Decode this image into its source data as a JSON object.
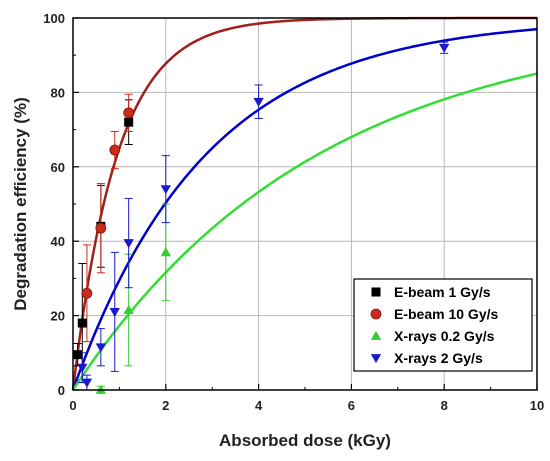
{
  "chart_data": {
    "type": "scatter",
    "xlabel": "Absorbed dose (kGy)",
    "ylabel": "Degradation efficiency (%)",
    "xlim": [
      0,
      10
    ],
    "ylim": [
      0,
      100
    ],
    "x_ticks": [
      0,
      2,
      4,
      6,
      8,
      10
    ],
    "y_ticks": [
      0,
      20,
      40,
      60,
      80,
      100
    ],
    "grid": true,
    "legend_position": "bottom-right",
    "series": [
      {
        "name": "E-beam 1 Gy/s",
        "marker": "square",
        "color": "#000000",
        "points": [
          {
            "x": 0.1,
            "y": 9.5,
            "err": 3
          },
          {
            "x": 0.2,
            "y": 18,
            "err": 16
          },
          {
            "x": 0.6,
            "y": 44,
            "err": 11
          },
          {
            "x": 1.2,
            "y": 72,
            "err": 6
          }
        ]
      },
      {
        "name": "E-beam 10 Gy/s",
        "marker": "circle",
        "color": "#cc2a1a",
        "points": [
          {
            "x": 0.3,
            "y": 26,
            "err": 13
          },
          {
            "x": 0.6,
            "y": 43.5,
            "err": 12
          },
          {
            "x": 0.9,
            "y": 64.5,
            "err": 5
          },
          {
            "x": 1.2,
            "y": 74.5,
            "err": 5
          }
        ]
      },
      {
        "name": "X-rays 0.2 Gy/s",
        "marker": "triangle-up",
        "color": "#33cc33",
        "points": [
          {
            "x": 0.6,
            "y": 0,
            "err": 1
          },
          {
            "x": 1.2,
            "y": 21.5,
            "err": 15
          },
          {
            "x": 2.0,
            "y": 37,
            "err": 13
          }
        ]
      },
      {
        "name": "X-rays 2 Gy/s",
        "marker": "triangle-down",
        "color": "#1a1acc",
        "points": [
          {
            "x": 0.2,
            "y": 6,
            "err": 4
          },
          {
            "x": 0.3,
            "y": 2,
            "err": 2
          },
          {
            "x": 0.6,
            "y": 11.5,
            "err": 5
          },
          {
            "x": 0.9,
            "y": 21,
            "err": 16
          },
          {
            "x": 1.2,
            "y": 39.5,
            "err": 12
          },
          {
            "x": 2.0,
            "y": 54,
            "err": 9
          },
          {
            "x": 4.0,
            "y": 77.5,
            "err": 4.5
          },
          {
            "x": 8.0,
            "y": 92,
            "err": 1.5
          }
        ]
      }
    ],
    "fit_curves": [
      {
        "color": "#a0201a",
        "y_max": 100,
        "k": 1.05
      },
      {
        "color": "#0000cc",
        "y_max": 100,
        "k": 0.35
      },
      {
        "color": "#33dd33",
        "y_max": 100,
        "k": 0.19
      }
    ]
  }
}
